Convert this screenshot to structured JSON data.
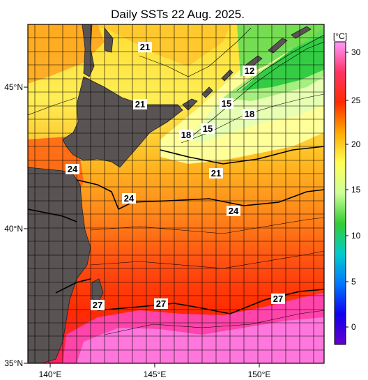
{
  "title": "Daily SSTs 22 Aug. 2025.",
  "units": "[°C]",
  "colorbar": {
    "ticks": [
      "30",
      "25",
      "20",
      "15",
      "10",
      "5",
      "0"
    ],
    "stops": [
      "#ff99ff",
      "#ff3366",
      "#ff2a00",
      "#ffaa00",
      "#ffff55",
      "#ccff99",
      "#33cc33",
      "#00cccc",
      "#0077ff",
      "#1100ee",
      "#6600cc"
    ]
  },
  "axes": {
    "lat_labels": [
      "45°N",
      "40°N",
      "35°N"
    ],
    "lon_labels": [
      "140°E",
      "145°E",
      "150°E"
    ]
  },
  "contour_labels": [
    "21",
    "12",
    "21",
    "15",
    "18",
    "15",
    "18",
    "24",
    "21",
    "24",
    "24",
    "27",
    "27",
    "27"
  ],
  "colors": {
    "land": "#595353",
    "warm": "#ff2a00",
    "hot": "#ff66dd",
    "cold": "#33cc33"
  }
}
